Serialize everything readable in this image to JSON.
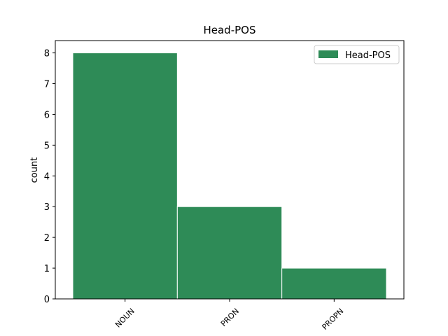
{
  "chart_data": {
    "type": "bar",
    "title": "Head-POS",
    "y_label": "count",
    "categories": [
      "NOUN",
      "PRON",
      "PROPN"
    ],
    "series": [
      {
        "name": "Head-POS",
        "color": "#2e8b57",
        "values": [
          8,
          3,
          1
        ]
      }
    ],
    "ylim": [
      0,
      8.4
    ],
    "yticks": [
      0,
      1,
      2,
      3,
      4,
      5,
      6,
      7,
      8
    ],
    "legend": "upper right",
    "grid": false
  }
}
